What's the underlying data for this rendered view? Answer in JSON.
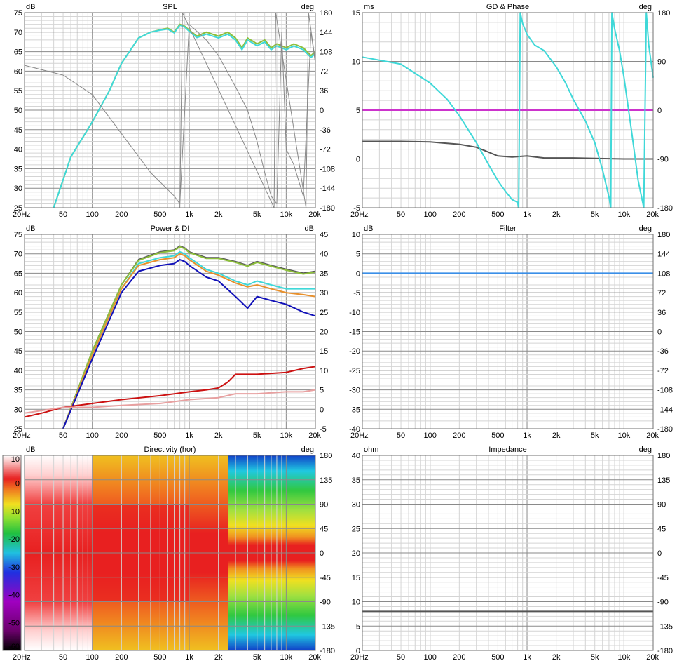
{
  "colors": {
    "green": "#8dbf3c",
    "cyan": "#3fd8d8",
    "dark_gray": "#555555",
    "mid_gray": "#888888",
    "orange": "#e8902c",
    "blue": "#1010b8",
    "red": "#cc1111",
    "pink": "#e8a0a0",
    "magenta": "#cc33cc",
    "filter_blue": "#3a8fe8",
    "grid_major": "#8a8a8a",
    "grid_minor": "#d4d4d4"
  },
  "freq_ticks": [
    "20Hz",
    "50",
    "100",
    "200",
    "500",
    "1k",
    "2k",
    "5k",
    "10k",
    "20k"
  ],
  "chart_data": [
    {
      "id": "spl",
      "type": "line",
      "title": "SPL",
      "x_scale": "log",
      "xlim": [
        20,
        20000
      ],
      "ylabel": "dB",
      "y2label": "deg",
      "ylim": [
        25,
        75
      ],
      "y_ticks": [
        "25",
        "30",
        "35",
        "40",
        "45",
        "50",
        "55",
        "60",
        "65",
        "70",
        "75"
      ],
      "y2lim": [
        -180,
        180
      ],
      "y2_ticks": [
        "-180",
        "-144",
        "-108",
        "-72",
        "-36",
        "0",
        "36",
        "72",
        "108",
        "144",
        "180"
      ],
      "series": [
        {
          "color": "green",
          "axis": "left",
          "x": [
            40,
            60,
            100,
            150,
            200,
            300,
            400,
            500,
            600,
            700,
            800,
            900,
            1000,
            1200,
            1500,
            2000,
            2500,
            3000,
            3500,
            4000,
            5000,
            6000,
            7000,
            8000,
            10000,
            12000,
            15000,
            18000,
            20000
          ],
          "y": [
            25,
            38,
            47,
            55,
            62,
            68.5,
            70,
            70.6,
            71,
            70,
            72,
            71.5,
            70.5,
            69,
            70,
            69,
            70,
            68.5,
            66,
            68.5,
            67,
            68,
            66,
            67,
            66,
            67,
            66,
            64,
            65
          ]
        },
        {
          "color": "cyan",
          "axis": "left",
          "x": [
            40,
            60,
            100,
            150,
            200,
            300,
            400,
            500,
            600,
            700,
            800,
            900,
            1000,
            1200,
            1500,
            2000,
            2500,
            3000,
            3500,
            4000,
            5000,
            6000,
            7000,
            8000,
            10000,
            12000,
            15000,
            18000,
            20000
          ],
          "y": [
            25,
            38,
            47,
            55,
            62,
            68.5,
            70,
            70.5,
            70.8,
            69.8,
            71.8,
            71.3,
            70.2,
            68.6,
            69.5,
            68.5,
            69.5,
            68,
            65.5,
            68,
            66.5,
            67.5,
            65.5,
            66.5,
            65.5,
            66.5,
            65.5,
            63.5,
            64.5
          ]
        },
        {
          "color": "mid_gray",
          "axis": "left",
          "x": [
            20,
            50,
            100,
            200,
            400,
            700,
            800,
            1000,
            1500,
            2000,
            3000,
            4000,
            5000,
            6000,
            7000,
            8000,
            9000,
            10000,
            12000,
            15000,
            18000,
            20000
          ],
          "y": [
            61.5,
            59,
            54,
            44,
            34,
            28,
            26,
            72,
            68,
            64,
            56,
            50,
            42,
            34,
            28,
            26,
            70,
            40,
            36,
            28,
            70,
            62
          ]
        },
        {
          "color": "mid_gray",
          "axis": "right",
          "x": [
            20,
            800,
            850,
            7500,
            7800,
            16000,
            17000,
            20000
          ],
          "y": [
            -180,
            -180,
            180,
            -180,
            180,
            -180,
            180,
            90
          ]
        }
      ]
    },
    {
      "id": "gd_phase",
      "type": "line",
      "title": "GD & Phase",
      "x_scale": "log",
      "xlim": [
        20,
        20000
      ],
      "ylabel": "ms",
      "y2label": "deg",
      "ylim": [
        -5,
        15
      ],
      "y_ticks": [
        "-5",
        "0",
        "5",
        "10",
        "15"
      ],
      "y2lim": [
        -180,
        180
      ],
      "y2_ticks": [
        "-180",
        "-90",
        "0",
        "90",
        "180"
      ],
      "series": [
        {
          "color": "magenta",
          "axis": "left",
          "x": [
            20,
            20000
          ],
          "y": [
            5,
            5
          ]
        },
        {
          "color": "dark_gray",
          "axis": "left",
          "x": [
            20,
            50,
            100,
            150,
            200,
            300,
            400,
            500,
            700,
            1000,
            1500,
            2000,
            3000,
            5000,
            10000,
            20000
          ],
          "y": [
            1.8,
            1.8,
            1.75,
            1.6,
            1.5,
            1.2,
            0.7,
            0.3,
            0.2,
            0.3,
            0.1,
            0.1,
            0.1,
            0.05,
            0,
            0
          ]
        },
        {
          "color": "cyan",
          "axis": "right",
          "x": [
            20,
            50,
            100,
            150,
            200,
            300,
            400,
            500,
            600,
            700,
            800,
            820,
            850,
            900,
            1000,
            1200,
            1500,
            2000,
            2500,
            3000,
            4000,
            5000,
            6000,
            7000,
            7300,
            7500,
            8000,
            9000,
            10000,
            12000,
            14000,
            16000,
            17000,
            18000,
            20000
          ],
          "y": [
            98,
            85,
            50,
            20,
            -10,
            -60,
            -100,
            -130,
            -150,
            -165,
            -170,
            -180,
            180,
            160,
            140,
            120,
            110,
            80,
            50,
            20,
            -20,
            -60,
            -110,
            -160,
            -180,
            180,
            150,
            110,
            60,
            -40,
            -130,
            -180,
            180,
            120,
            60
          ]
        }
      ]
    },
    {
      "id": "power_di",
      "type": "line",
      "title": "Power & DI",
      "x_scale": "log",
      "xlim": [
        20,
        20000
      ],
      "ylabel": "dB",
      "y2label": "dB",
      "ylim": [
        25,
        75
      ],
      "y_ticks": [
        "25",
        "30",
        "35",
        "40",
        "45",
        "50",
        "55",
        "60",
        "65",
        "70",
        "75"
      ],
      "y2lim": [
        -5,
        45
      ],
      "y2_ticks": [
        "-5",
        "0",
        "5",
        "10",
        "15",
        "20",
        "25",
        "30",
        "35",
        "40",
        "45"
      ],
      "series": [
        {
          "color": "dark_gray",
          "axis": "left",
          "x": [
            50,
            100,
            200,
            300,
            500,
            700,
            800,
            900,
            1000,
            1500,
            2000,
            3000,
            4000,
            5000,
            7000,
            10000,
            15000,
            20000
          ],
          "y": [
            25,
            45,
            62,
            68.5,
            70.5,
            71,
            72,
            71.5,
            70.5,
            69,
            69,
            68,
            67,
            68,
            67,
            66,
            65,
            65.5
          ]
        },
        {
          "color": "green",
          "axis": "left",
          "x": [
            50,
            100,
            200,
            300,
            500,
            700,
            800,
            900,
            1000,
            1500,
            2000,
            3000,
            4000,
            5000,
            7000,
            10000,
            15000,
            20000
          ],
          "y": [
            25,
            45,
            62,
            68.3,
            70.3,
            70.8,
            71.8,
            71.3,
            70.3,
            68.8,
            68.8,
            67.8,
            66.8,
            67.8,
            66.8,
            65.8,
            64.8,
            65.3
          ]
        },
        {
          "color": "cyan",
          "axis": "left",
          "x": [
            50,
            100,
            200,
            300,
            500,
            700,
            800,
            900,
            1000,
            1500,
            2000,
            3000,
            4000,
            5000,
            7000,
            10000,
            15000,
            20000
          ],
          "y": [
            25,
            44,
            61,
            67.5,
            69,
            69.5,
            70.5,
            70,
            69,
            66,
            65,
            63,
            62,
            63,
            62,
            61,
            61,
            61
          ]
        },
        {
          "color": "orange",
          "axis": "left",
          "x": [
            50,
            100,
            200,
            300,
            500,
            700,
            800,
            900,
            1000,
            1500,
            2000,
            3000,
            4000,
            5000,
            7000,
            10000,
            15000,
            20000
          ],
          "y": [
            25,
            44,
            61,
            67,
            68.5,
            69,
            70,
            69.5,
            68.5,
            65.5,
            64.5,
            62.5,
            61.5,
            62,
            61,
            60,
            59.5,
            59
          ]
        },
        {
          "color": "blue",
          "axis": "left",
          "x": [
            50,
            100,
            200,
            300,
            500,
            700,
            800,
            900,
            1000,
            1500,
            2000,
            3000,
            4000,
            5000,
            7000,
            10000,
            15000,
            20000
          ],
          "y": [
            25,
            43,
            60,
            65.5,
            67,
            67.5,
            68.5,
            68,
            67,
            64,
            63,
            59,
            56,
            59,
            58,
            57,
            55,
            54
          ]
        },
        {
          "color": "red",
          "axis": "right",
          "x": [
            20,
            30,
            50,
            100,
            200,
            500,
            1000,
            1500,
            2000,
            2500,
            3000,
            5000,
            10000,
            15000,
            20000
          ],
          "y": [
            -2,
            -1,
            0.5,
            1.5,
            2.5,
            3.5,
            4.5,
            5,
            5.5,
            7,
            9,
            9,
            9.5,
            10.5,
            11
          ]
        },
        {
          "color": "pink",
          "axis": "right",
          "x": [
            20,
            50,
            100,
            200,
            500,
            1000,
            2000,
            3000,
            5000,
            10000,
            15000,
            20000
          ],
          "y": [
            -1,
            0.5,
            0.5,
            1,
            1.5,
            2.5,
            3,
            4,
            4,
            4.5,
            4.5,
            5
          ]
        }
      ]
    },
    {
      "id": "filter",
      "type": "line",
      "title": "Filter",
      "x_scale": "log",
      "xlim": [
        20,
        20000
      ],
      "ylabel": "dB",
      "y2label": "deg",
      "ylim": [
        -40,
        10
      ],
      "y_ticks": [
        "-40",
        "-35",
        "-30",
        "-25",
        "-20",
        "-15",
        "-10",
        "-5",
        "0",
        "5",
        "10"
      ],
      "y2lim": [
        -180,
        180
      ],
      "y2_ticks": [
        "-180",
        "-144",
        "-108",
        "-72",
        "-36",
        "0",
        "36",
        "72",
        "108",
        "144",
        "180"
      ],
      "series": [
        {
          "color": "filter_blue",
          "axis": "left",
          "x": [
            20,
            20000
          ],
          "y": [
            0,
            0
          ]
        }
      ]
    },
    {
      "id": "directivity",
      "type": "heatmap",
      "title": "Directivity (hor)",
      "x_scale": "log",
      "xlim": [
        20,
        20000
      ],
      "ylabel": "dB",
      "y2label": "deg",
      "y2lim": [
        -180,
        180
      ],
      "y2_ticks": [
        "-180",
        "-135",
        "-90",
        "-45",
        "0",
        "45",
        "90",
        "135",
        "180"
      ],
      "colorbar_ticks": [
        "-60",
        "-50",
        "-40",
        "-30",
        "-20",
        "-10",
        "0",
        "10"
      ]
    },
    {
      "id": "impedance",
      "type": "line",
      "title": "Impedance",
      "x_scale": "log",
      "xlim": [
        20,
        20000
      ],
      "ylabel": "ohm",
      "y2label": "deg",
      "ylim": [
        0,
        40
      ],
      "y_ticks": [
        "0",
        "5",
        "10",
        "15",
        "20",
        "25",
        "30",
        "35",
        "40"
      ],
      "y2lim": [
        -180,
        180
      ],
      "y2_ticks": [
        "-180",
        "-135",
        "-90",
        "-45",
        "0",
        "45",
        "90",
        "135",
        "180"
      ],
      "series": [
        {
          "color": "dark_gray",
          "axis": "left",
          "x": [
            20,
            20000
          ],
          "y": [
            8,
            8
          ]
        }
      ]
    }
  ]
}
